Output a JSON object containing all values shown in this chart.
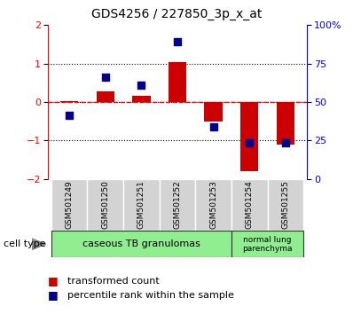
{
  "title": "GDS4256 / 227850_3p_x_at",
  "samples": [
    "GSM501249",
    "GSM501250",
    "GSM501251",
    "GSM501252",
    "GSM501253",
    "GSM501254",
    "GSM501255"
  ],
  "red_bars": [
    0.02,
    0.27,
    0.17,
    1.05,
    -0.5,
    -1.8,
    -1.1
  ],
  "blue_squares_left_axis": [
    -0.35,
    0.65,
    0.45,
    1.58,
    -0.65,
    -1.05,
    -1.05
  ],
  "ylim_left": [
    -2.0,
    2.0
  ],
  "ylim_right": [
    0,
    100
  ],
  "yticks_left": [
    -2,
    -1,
    0,
    1,
    2
  ],
  "yticks_right": [
    0,
    25,
    50,
    75,
    100
  ],
  "ytick_labels_right": [
    "0",
    "25",
    "50",
    "75",
    "100%"
  ],
  "hlines": [
    -1,
    0,
    1
  ],
  "red_line_y": 0,
  "cell_type_label": "cell type",
  "legend_red": "transformed count",
  "legend_blue": "percentile rank within the sample",
  "bar_color": "#CC0000",
  "square_color": "#00008B",
  "bar_width": 0.5,
  "background_color": "#ffffff",
  "group1_label": "caseous TB granulomas",
  "group2_label": "normal lung\nparenchyma",
  "group_color": "#90EE90"
}
